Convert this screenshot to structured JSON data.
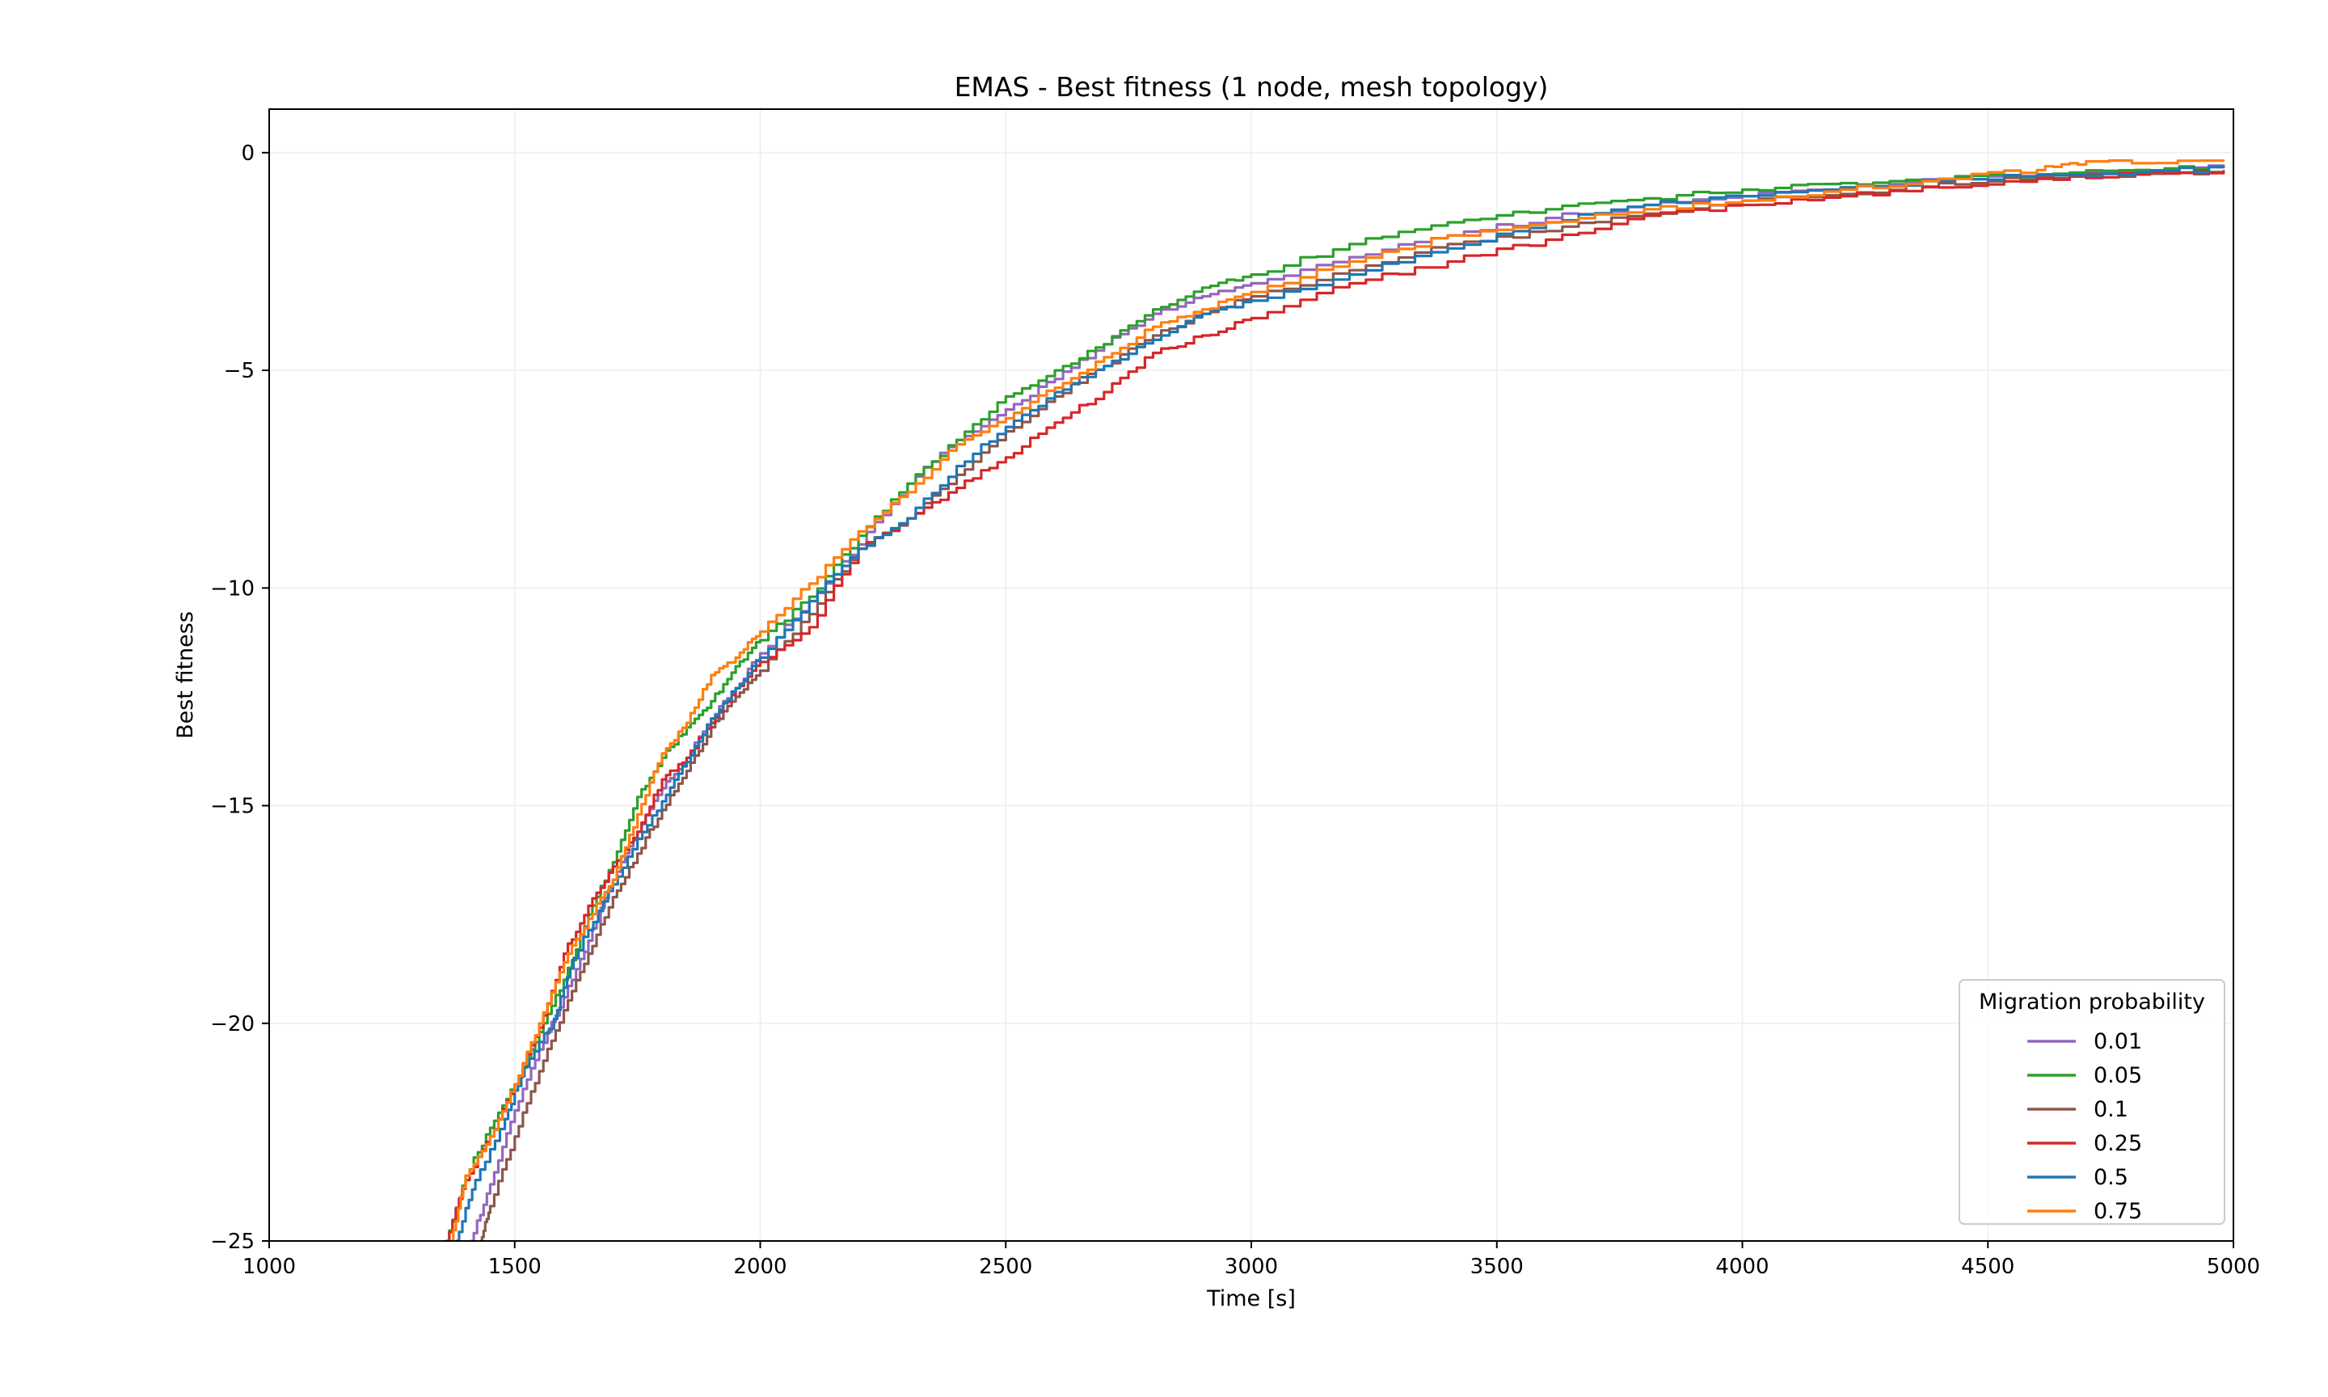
{
  "chart_data": {
    "type": "line",
    "title": "EMAS - Best fitness (1 node, mesh topology)",
    "xlabel": "Time [s]",
    "ylabel": "Best fitness",
    "xlim": [
      1000,
      5000
    ],
    "ylim": [
      -25,
      1
    ],
    "xticks": [
      "1000",
      "1500",
      "2000",
      "2500",
      "3000",
      "3500",
      "4000",
      "4500",
      "5000"
    ],
    "yticks": [
      "0",
      "−5",
      "−10",
      "−15",
      "−20",
      "−25"
    ],
    "grid": true,
    "legend": {
      "title": "Migration probability",
      "placement": "lower-right"
    },
    "series": [
      {
        "name": "0.01",
        "color": "#9467bd",
        "points": [
          [
            1410,
            -25
          ],
          [
            1450,
            -23.7
          ],
          [
            1500,
            -22
          ],
          [
            1550,
            -20.6
          ],
          [
            1600,
            -19.4
          ],
          [
            1650,
            -18.1
          ],
          [
            1700,
            -16.7
          ],
          [
            1750,
            -15.6
          ],
          [
            1800,
            -14.6
          ],
          [
            1850,
            -13.9
          ],
          [
            1900,
            -13.0
          ],
          [
            1950,
            -12.3
          ],
          [
            2000,
            -11.5
          ],
          [
            2100,
            -10.3
          ],
          [
            2200,
            -9.0
          ],
          [
            2300,
            -7.6
          ],
          [
            2400,
            -6.6
          ],
          [
            2500,
            -5.9
          ],
          [
            2600,
            -5.2
          ],
          [
            2700,
            -4.4
          ],
          [
            2800,
            -3.7
          ],
          [
            2900,
            -3.3
          ],
          [
            3000,
            -3.0
          ],
          [
            3200,
            -2.4
          ],
          [
            3400,
            -1.9
          ],
          [
            3600,
            -1.5
          ],
          [
            3800,
            -1.2
          ],
          [
            4000,
            -1.0
          ],
          [
            4200,
            -0.8
          ],
          [
            4400,
            -0.6
          ],
          [
            4600,
            -0.5
          ],
          [
            4800,
            -0.4
          ],
          [
            4980,
            -0.3
          ]
        ]
      },
      {
        "name": "0.05",
        "color": "#2ca02c",
        "points": [
          [
            1360,
            -25
          ],
          [
            1400,
            -23.5
          ],
          [
            1450,
            -22.4
          ],
          [
            1500,
            -21.4
          ],
          [
            1550,
            -20.2
          ],
          [
            1600,
            -19.0
          ],
          [
            1650,
            -17.5
          ],
          [
            1700,
            -16.3
          ],
          [
            1750,
            -14.8
          ],
          [
            1800,
            -13.9
          ],
          [
            1850,
            -13.2
          ],
          [
            1900,
            -12.6
          ],
          [
            1950,
            -11.8
          ],
          [
            2000,
            -11.2
          ],
          [
            2100,
            -10.2
          ],
          [
            2200,
            -8.8
          ],
          [
            2300,
            -7.6
          ],
          [
            2400,
            -6.6
          ],
          [
            2500,
            -5.6
          ],
          [
            2600,
            -5.0
          ],
          [
            2700,
            -4.4
          ],
          [
            2800,
            -3.6
          ],
          [
            2900,
            -3.1
          ],
          [
            3000,
            -2.8
          ],
          [
            3200,
            -2.1
          ],
          [
            3400,
            -1.6
          ],
          [
            3600,
            -1.3
          ],
          [
            3800,
            -1.05
          ],
          [
            4000,
            -0.85
          ],
          [
            4200,
            -0.7
          ],
          [
            4400,
            -0.6
          ],
          [
            4600,
            -0.5
          ],
          [
            4800,
            -0.4
          ],
          [
            4980,
            -0.3
          ]
        ]
      },
      {
        "name": "0.1",
        "color": "#8c564b",
        "points": [
          [
            1430,
            -25
          ],
          [
            1450,
            -24.2
          ],
          [
            1500,
            -22.6
          ],
          [
            1550,
            -21.1
          ],
          [
            1600,
            -19.7
          ],
          [
            1650,
            -18.4
          ],
          [
            1700,
            -17.1
          ],
          [
            1750,
            -16.1
          ],
          [
            1800,
            -15.1
          ],
          [
            1850,
            -14.2
          ],
          [
            1900,
            -13.2
          ],
          [
            1950,
            -12.5
          ],
          [
            2000,
            -11.9
          ],
          [
            2100,
            -10.6
          ],
          [
            2200,
            -9.1
          ],
          [
            2300,
            -8.4
          ],
          [
            2400,
            -7.4
          ],
          [
            2500,
            -6.4
          ],
          [
            2600,
            -5.6
          ],
          [
            2700,
            -4.9
          ],
          [
            2800,
            -4.2
          ],
          [
            2900,
            -3.7
          ],
          [
            3000,
            -3.3
          ],
          [
            3200,
            -2.7
          ],
          [
            3400,
            -2.1
          ],
          [
            3600,
            -1.8
          ],
          [
            3800,
            -1.4
          ],
          [
            4000,
            -1.1
          ],
          [
            4200,
            -0.95
          ],
          [
            4400,
            -0.7
          ],
          [
            4600,
            -0.55
          ],
          [
            4800,
            -0.5
          ],
          [
            4980,
            -0.45
          ]
        ]
      },
      {
        "name": "0.25",
        "color": "#d62728",
        "points": [
          [
            1360,
            -25
          ],
          [
            1400,
            -23.6
          ],
          [
            1450,
            -22.6
          ],
          [
            1500,
            -21.4
          ],
          [
            1550,
            -20.1
          ],
          [
            1600,
            -18.4
          ],
          [
            1650,
            -17.3
          ],
          [
            1700,
            -16.4
          ],
          [
            1750,
            -15.6
          ],
          [
            1800,
            -14.4
          ],
          [
            1850,
            -13.9
          ],
          [
            1900,
            -13.1
          ],
          [
            1950,
            -12.3
          ],
          [
            2000,
            -11.7
          ],
          [
            2100,
            -10.9
          ],
          [
            2200,
            -9.1
          ],
          [
            2300,
            -8.4
          ],
          [
            2400,
            -7.7
          ],
          [
            2500,
            -7.0
          ],
          [
            2600,
            -6.2
          ],
          [
            2700,
            -5.5
          ],
          [
            2800,
            -4.6
          ],
          [
            2900,
            -4.2
          ],
          [
            3000,
            -3.8
          ],
          [
            3200,
            -3.0
          ],
          [
            3400,
            -2.5
          ],
          [
            3600,
            -2.0
          ],
          [
            3800,
            -1.45
          ],
          [
            4000,
            -1.2
          ],
          [
            4200,
            -1.0
          ],
          [
            4400,
            -0.8
          ],
          [
            4600,
            -0.6
          ],
          [
            4800,
            -0.5
          ],
          [
            4980,
            -0.4
          ]
        ]
      },
      {
        "name": "0.5",
        "color": "#1f77b4",
        "points": [
          [
            1380,
            -25
          ],
          [
            1420,
            -23.6
          ],
          [
            1480,
            -22.2
          ],
          [
            1520,
            -21.0
          ],
          [
            1580,
            -19.9
          ],
          [
            1620,
            -18.5
          ],
          [
            1680,
            -17.2
          ],
          [
            1740,
            -16.0
          ],
          [
            1800,
            -14.9
          ],
          [
            1850,
            -14.0
          ],
          [
            1900,
            -13.0
          ],
          [
            1950,
            -12.3
          ],
          [
            2000,
            -11.6
          ],
          [
            2100,
            -10.3
          ],
          [
            2200,
            -9.1
          ],
          [
            2300,
            -8.4
          ],
          [
            2400,
            -7.2
          ],
          [
            2500,
            -6.3
          ],
          [
            2600,
            -5.5
          ],
          [
            2700,
            -4.9
          ],
          [
            2800,
            -4.3
          ],
          [
            2900,
            -3.7
          ],
          [
            3000,
            -3.4
          ],
          [
            3200,
            -2.8
          ],
          [
            3400,
            -2.2
          ],
          [
            3600,
            -1.6
          ],
          [
            3800,
            -1.2
          ],
          [
            4000,
            -1.0
          ],
          [
            4200,
            -0.8
          ],
          [
            4400,
            -0.65
          ],
          [
            4600,
            -0.5
          ],
          [
            4800,
            -0.45
          ],
          [
            4980,
            -0.35
          ]
        ]
      },
      {
        "name": "0.75",
        "color": "#ff7f0e",
        "points": [
          [
            1370,
            -25
          ],
          [
            1400,
            -23.5
          ],
          [
            1450,
            -22.6
          ],
          [
            1500,
            -21.4
          ],
          [
            1550,
            -20.0
          ],
          [
            1600,
            -18.6
          ],
          [
            1650,
            -17.6
          ],
          [
            1700,
            -16.7
          ],
          [
            1750,
            -15.2
          ],
          [
            1800,
            -13.8
          ],
          [
            1850,
            -13.1
          ],
          [
            1900,
            -12.0
          ],
          [
            1950,
            -11.6
          ],
          [
            2000,
            -11.0
          ],
          [
            2100,
            -9.9
          ],
          [
            2200,
            -8.7
          ],
          [
            2300,
            -7.8
          ],
          [
            2400,
            -6.7
          ],
          [
            2500,
            -6.1
          ],
          [
            2600,
            -5.4
          ],
          [
            2700,
            -4.7
          ],
          [
            2800,
            -4.0
          ],
          [
            2900,
            -3.6
          ],
          [
            3000,
            -3.2
          ],
          [
            3200,
            -2.5
          ],
          [
            3400,
            -1.9
          ],
          [
            3600,
            -1.6
          ],
          [
            3800,
            -1.3
          ],
          [
            4000,
            -1.1
          ],
          [
            4200,
            -0.85
          ],
          [
            4400,
            -0.6
          ],
          [
            4600,
            -0.4
          ],
          [
            4700,
            -0.2
          ],
          [
            4980,
            -0.2
          ]
        ]
      }
    ]
  }
}
